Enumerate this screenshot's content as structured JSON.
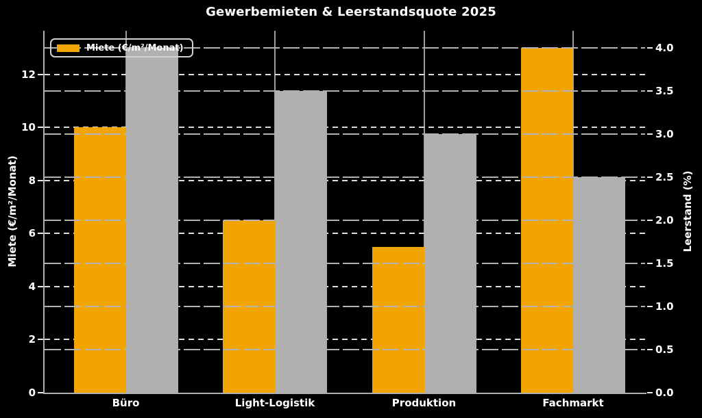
{
  "chart_data": {
    "type": "bar",
    "title": "Gewerbemieten & Leerstandsquote 2025",
    "categories": [
      "Büro",
      "Light-Logistik",
      "Produktion",
      "Fachmarkt"
    ],
    "series": [
      {
        "name": "Miete (€/m²/Monat)",
        "axis": "left",
        "color": "#F2A400",
        "values": [
          10.0,
          6.5,
          5.5,
          13.0
        ]
      },
      {
        "name": "Leerstand (%)",
        "axis": "right",
        "color": "#B0B0B0",
        "values": [
          4.0,
          3.5,
          3.0,
          2.5
        ]
      }
    ],
    "left_axis": {
      "label": "Miete (€/m²/Monat)",
      "min": 0,
      "max": 13.65,
      "ticks": [
        0,
        2,
        4,
        6,
        8,
        10,
        12
      ],
      "grid_style": "dashed"
    },
    "right_axis": {
      "label": "Leerstand (%)",
      "min": 0,
      "max": 4.2,
      "ticks": [
        0,
        0.5,
        1,
        1.5,
        2,
        2.5,
        3,
        3.5,
        4
      ],
      "tick_decimals": 1,
      "grid_style": "long-dash"
    },
    "legend": {
      "position": "upper-left",
      "entries": [
        {
          "label": "Miete (€/m²/Monat)",
          "color": "#F2A400"
        }
      ]
    },
    "colors": {
      "background": "#000000",
      "text": "#FFFFFF",
      "bar_miete": "#F2A400",
      "bar_leerstand": "#B0B0B0",
      "grid_left": "#DCDCDC",
      "grid_right": "#B3B3B3",
      "grid_vertical": "#9E9E9E",
      "spine": "#B0B0B0",
      "tick": "#ECECEC"
    }
  }
}
